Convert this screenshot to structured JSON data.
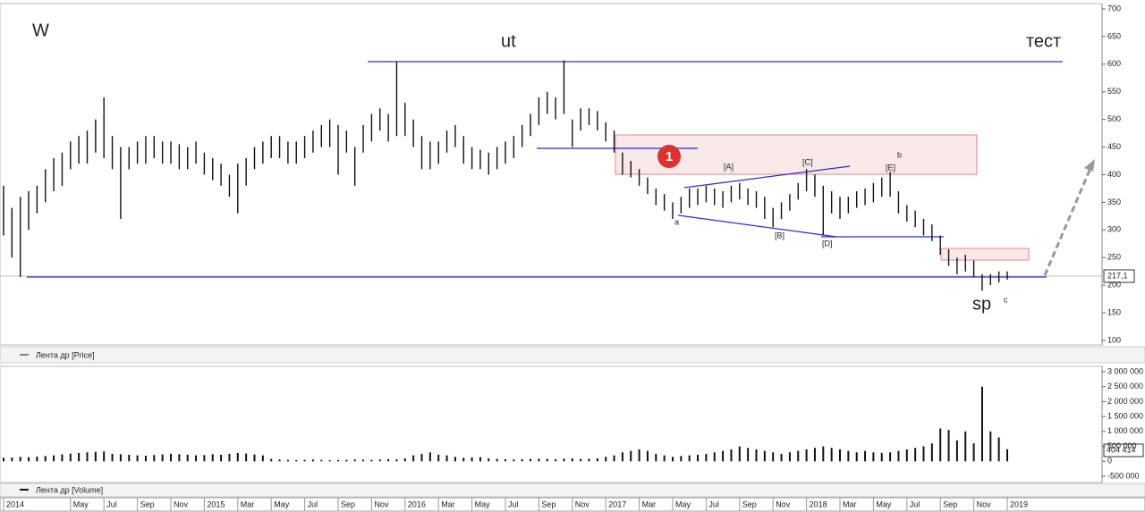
{
  "chart_data": [
    {
      "type": "hilo",
      "categories": [
        "2014",
        null,
        null,
        null,
        null,
        null,
        null,
        null,
        "May",
        null,
        null,
        null,
        "Jul",
        null,
        null,
        null,
        "Sep",
        null,
        null,
        null,
        "Nov",
        null,
        null,
        null,
        "2015",
        null,
        null,
        null,
        "Mar",
        null,
        null,
        null,
        "May",
        null,
        null,
        null,
        "Jul",
        null,
        null,
        null,
        "Sep",
        null,
        null,
        null,
        "Nov",
        null,
        null,
        null,
        "2016",
        null,
        null,
        null,
        "Mar",
        null,
        null,
        null,
        "May",
        null,
        null,
        null,
        "Jul",
        null,
        null,
        null,
        "Sep",
        null,
        null,
        null,
        "Nov",
        null,
        null,
        null,
        "2017",
        null,
        null,
        null,
        "Mar",
        null,
        null,
        null,
        "May",
        null,
        null,
        null,
        "Jul",
        null,
        null,
        null,
        "Sep",
        null,
        null,
        null,
        "Nov",
        null,
        null,
        null,
        "2018",
        null,
        null,
        null,
        "Mar",
        null,
        null,
        null,
        "May",
        null,
        null,
        null,
        "Jul",
        null,
        null,
        null,
        "Sep",
        null,
        null,
        null,
        "Nov",
        null,
        null,
        null,
        "2019"
      ],
      "series": [
        {
          "name": "Лента др [Price]",
          "color": "#111111",
          "low": [
            290,
            250,
            215,
            300,
            330,
            350,
            370,
            380,
            410,
            420,
            420,
            440,
            430,
            410,
            320,
            410,
            420,
            420,
            430,
            420,
            420,
            410,
            410,
            420,
            400,
            390,
            380,
            360,
            330,
            380,
            410,
            420,
            430,
            430,
            420,
            420,
            430,
            440,
            450,
            450,
            400,
            440,
            380,
            440,
            460,
            480,
            460,
            470,
            470,
            450,
            410,
            410,
            420,
            440,
            450,
            420,
            410,
            410,
            400,
            410,
            420,
            430,
            450,
            470,
            490,
            510,
            500,
            510,
            450,
            480,
            490,
            480,
            460,
            440,
            400,
            395,
            380,
            365,
            345,
            335,
            320,
            330,
            340,
            345,
            350,
            345,
            340,
            350,
            355,
            345,
            340,
            320,
            305,
            320,
            335,
            355,
            370,
            360,
            290,
            330,
            320,
            330,
            340,
            345,
            350,
            360,
            360,
            330,
            315,
            305,
            290,
            280,
            255,
            235,
            220,
            225,
            215,
            190,
            200,
            205,
            210
          ],
          "high": [
            380,
            340,
            360,
            370,
            380,
            410,
            430,
            440,
            460,
            470,
            480,
            500,
            540,
            470,
            450,
            450,
            460,
            470,
            470,
            460,
            460,
            455,
            450,
            460,
            440,
            430,
            420,
            400,
            420,
            430,
            450,
            460,
            470,
            470,
            460,
            460,
            470,
            480,
            490,
            500,
            490,
            480,
            450,
            490,
            510,
            520,
            510,
            605,
            530,
            500,
            470,
            460,
            460,
            480,
            490,
            470,
            450,
            445,
            440,
            450,
            460,
            470,
            490,
            510,
            540,
            550,
            540,
            607,
            500,
            520,
            520,
            515,
            495,
            480,
            440,
            425,
            410,
            395,
            375,
            365,
            350,
            360,
            375,
            375,
            380,
            375,
            370,
            380,
            385,
            375,
            370,
            360,
            340,
            350,
            365,
            385,
            410,
            400,
            380,
            370,
            360,
            360,
            370,
            375,
            385,
            395,
            405,
            370,
            345,
            335,
            320,
            310,
            290,
            265,
            250,
            255,
            245,
            220,
            220,
            225,
            225
          ]
        }
      ],
      "ylim": [
        100,
        700
      ],
      "yticks": [
        100,
        150,
        200,
        250,
        300,
        350,
        400,
        450,
        500,
        550,
        600,
        650,
        700
      ],
      "last_value_label": "217,1",
      "annotations": [
        "W",
        "ut",
        "тест",
        "sp",
        "1",
        "[A]",
        "[C]",
        "[E]",
        "b",
        "a",
        "[B]",
        "[D]",
        "c"
      ]
    },
    {
      "type": "bar",
      "series": [
        {
          "name": "Лента др [Volume]",
          "color": "#111111",
          "values": [
            120000,
            130000,
            150000,
            140000,
            160000,
            180000,
            200000,
            230000,
            260000,
            280000,
            300000,
            320000,
            330000,
            250000,
            240000,
            220000,
            200000,
            190000,
            210000,
            230000,
            250000,
            240000,
            220000,
            200000,
            210000,
            240000,
            220000,
            250000,
            280000,
            260000,
            230000,
            200000,
            80000,
            60000,
            50000,
            40000,
            50000,
            60000,
            50000,
            40000,
            45000,
            50000,
            60000,
            55000,
            50000,
            60000,
            70000,
            65000,
            100000,
            200000,
            250000,
            300000,
            220000,
            200000,
            150000,
            120000,
            130000,
            140000,
            100000,
            80000,
            70000,
            60000,
            70000,
            80000,
            90000,
            80000,
            70000,
            90000,
            100000,
            80000,
            90000,
            100000,
            150000,
            200000,
            300000,
            350000,
            400000,
            350000,
            250000,
            200000,
            150000,
            180000,
            200000,
            220000,
            250000,
            300000,
            350000,
            400000,
            500000,
            450000,
            400000,
            350000,
            300000,
            250000,
            300000,
            350000,
            400000,
            450000,
            500000,
            450000,
            400000,
            350000,
            300000,
            350000,
            300000,
            280000,
            300000,
            350000,
            400000,
            450000,
            500000,
            600000,
            1100000,
            1050000,
            700000,
            1000000,
            600000,
            2500000,
            1000000,
            800000,
            404414
          ]
        }
      ],
      "ylim": [
        -500000,
        3000000
      ],
      "yticks": [
        {
          "value": -500000,
          "label": "-500 000"
        },
        0,
        {
          "value": 500000,
          "label": "500 000"
        },
        {
          "value": 1000000,
          "label": "1 000 000"
        },
        {
          "value": 1500000,
          "label": "1 500 000"
        },
        {
          "value": 2000000,
          "label": "2 000 000"
        },
        {
          "value": 2500000,
          "label": "2 500 000"
        },
        {
          "value": 3000000,
          "label": "3 000 000"
        }
      ],
      "last_value_label": "404 414"
    }
  ]
}
